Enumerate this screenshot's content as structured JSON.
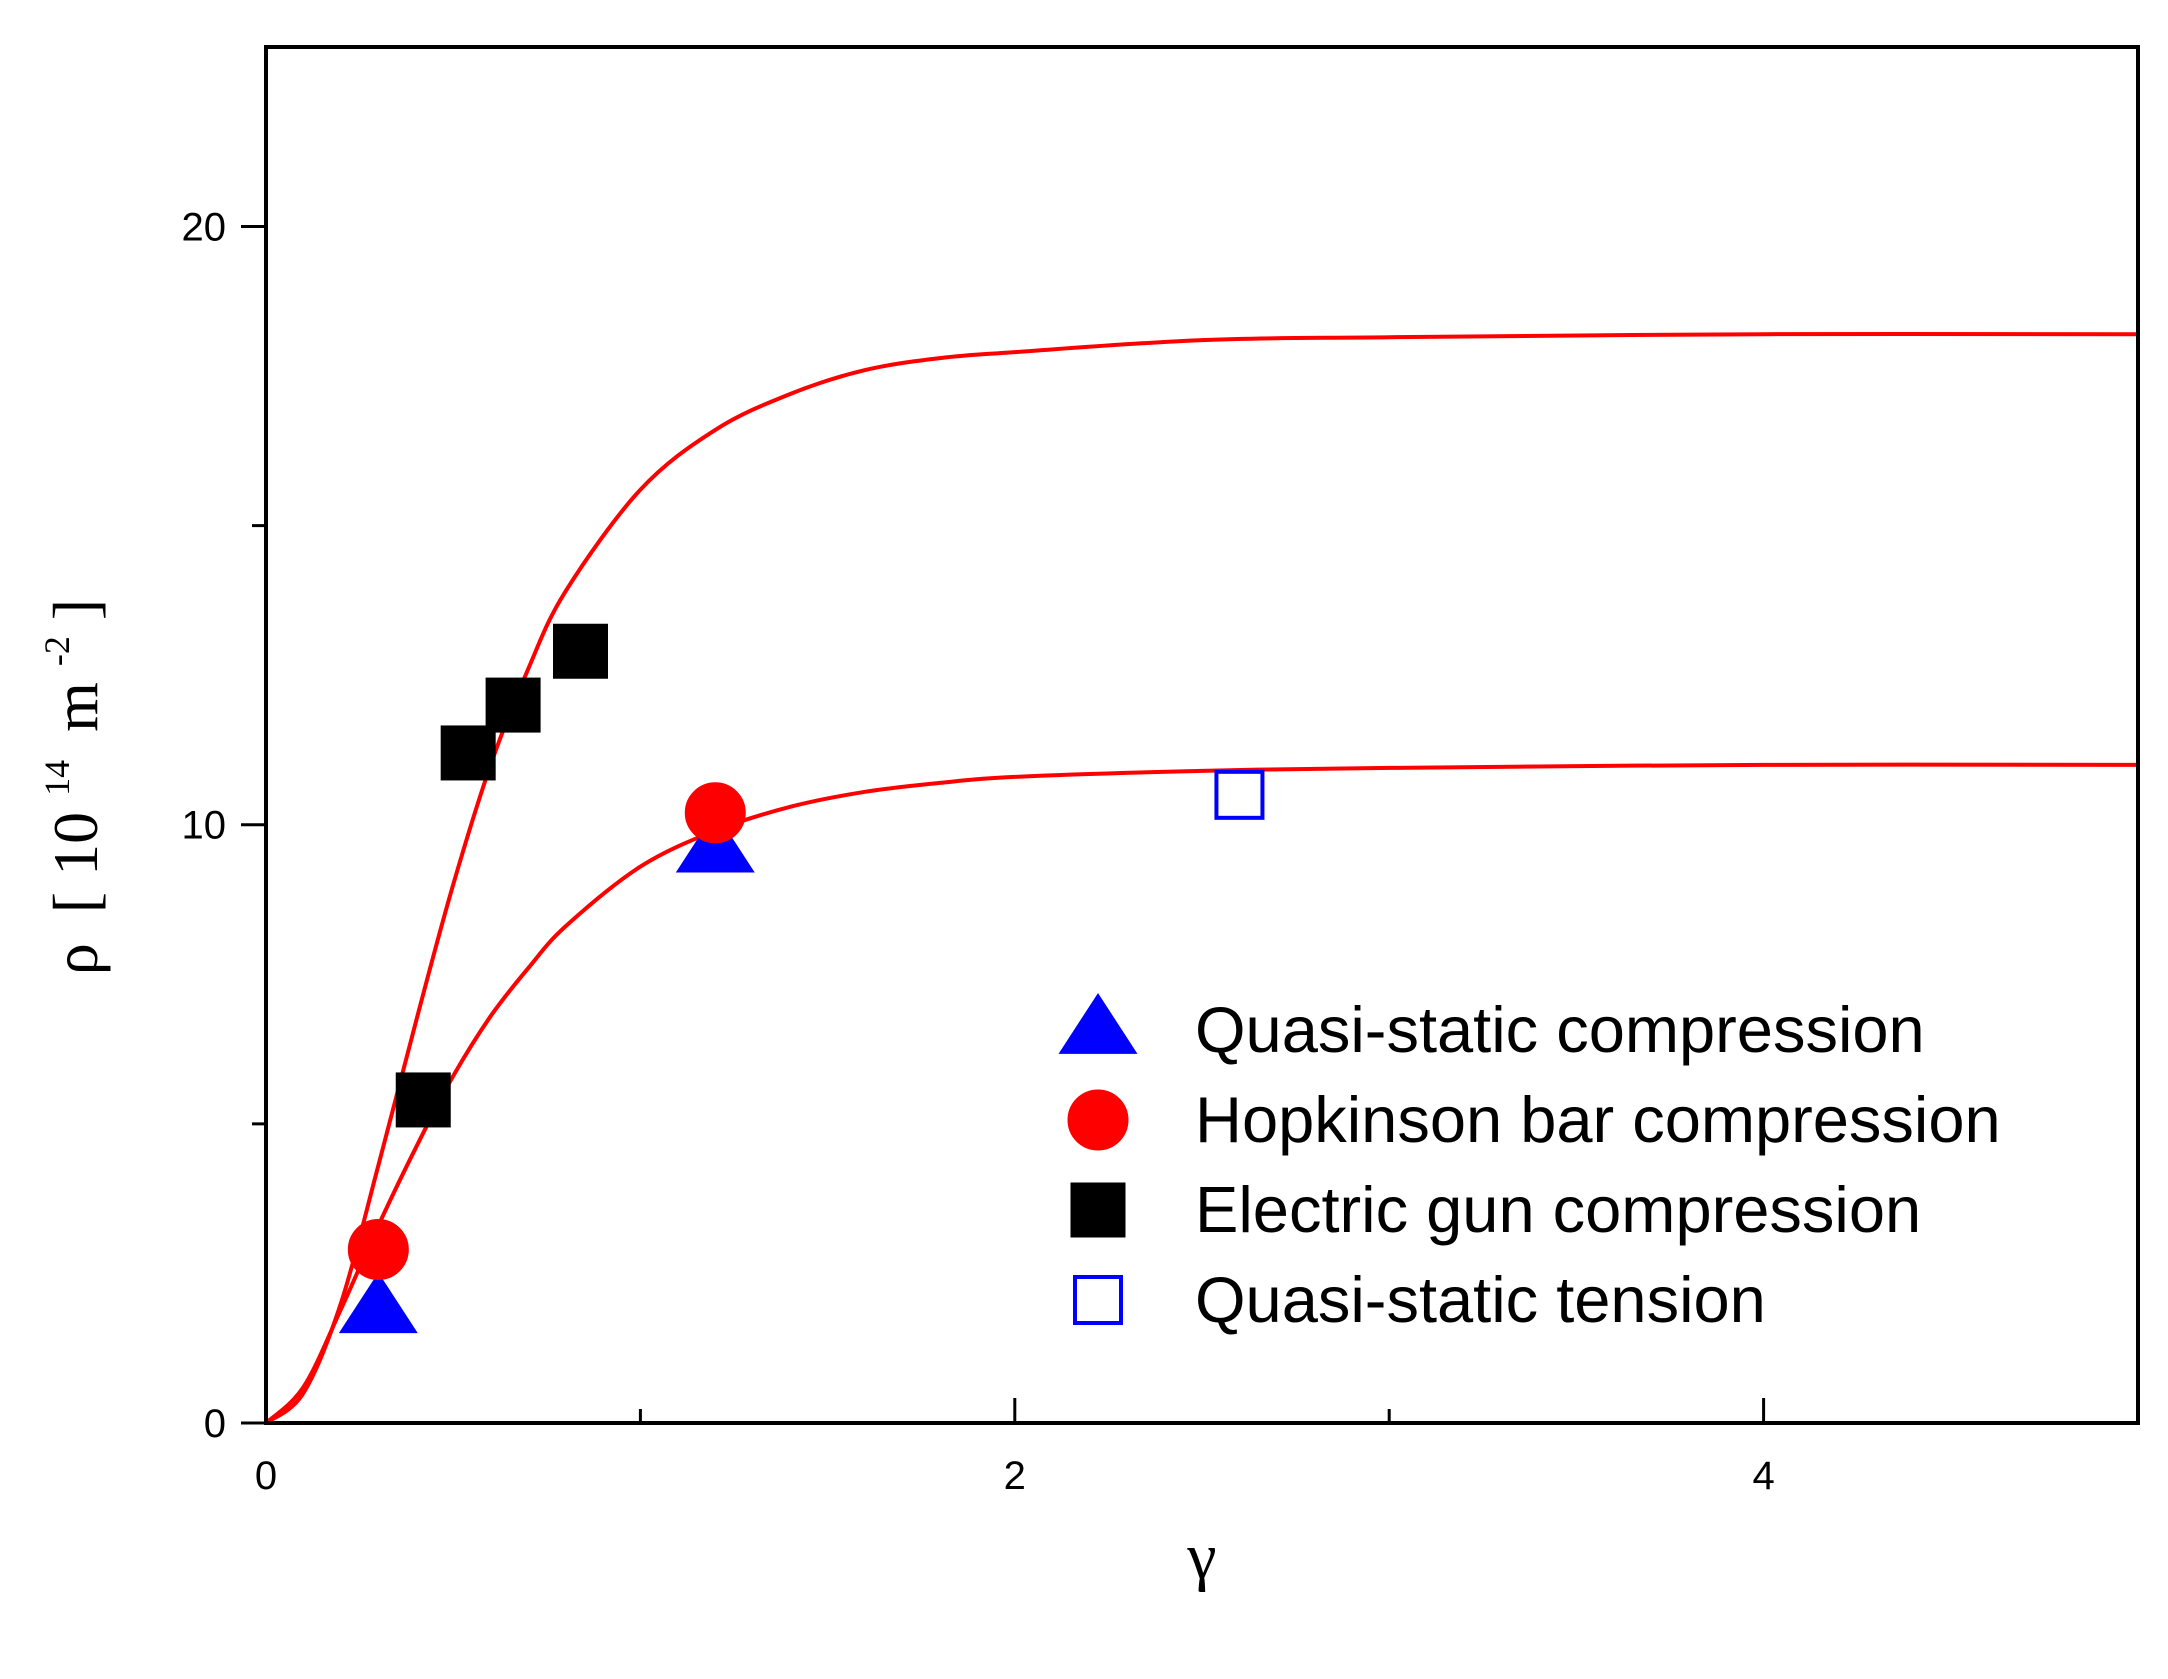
{
  "chart_data": {
    "type": "scatter",
    "title": "",
    "xlabel": "γ",
    "ylabel": {
      "symbol": "ρ",
      "open_bracket": "[",
      "base": "10",
      "exponent": "14",
      "unit": "m",
      "unit_exponent": "-2",
      "close_bracket": "]"
    },
    "xlim": [
      0,
      5
    ],
    "ylim": [
      0,
      23
    ],
    "x_ticks": [
      0,
      2,
      4
    ],
    "x_minor_ticks": [
      1,
      3
    ],
    "y_ticks": [
      0,
      10,
      20
    ],
    "y_minor_ticks": [
      5,
      15
    ],
    "grid": false,
    "legend_position": "bottom-right",
    "series": [
      {
        "name": "Quasi-static compression",
        "marker": "triangle",
        "filled": true,
        "color": "#0000ff",
        "points": [
          [
            0.3,
            1.9
          ],
          [
            1.2,
            9.6
          ]
        ]
      },
      {
        "name": "Hopkinson bar compression",
        "marker": "circle",
        "filled": true,
        "color": "#ff0000",
        "points": [
          [
            0.3,
            2.9
          ],
          [
            1.2,
            10.2
          ]
        ]
      },
      {
        "name": "Electric gun compression",
        "marker": "square",
        "filled": true,
        "color": "#000000",
        "points": [
          [
            0.42,
            5.4
          ],
          [
            0.54,
            11.2
          ],
          [
            0.66,
            12.0
          ],
          [
            0.84,
            12.9
          ]
        ]
      },
      {
        "name": "Quasi-static tension",
        "marker": "square",
        "filled": false,
        "color": "#0000ff",
        "points": [
          [
            2.6,
            10.5
          ]
        ]
      }
    ],
    "fit_curves": [
      {
        "color": "#ff0000",
        "points": [
          [
            0,
            0
          ],
          [
            0.1,
            0.5
          ],
          [
            0.2,
            2.0
          ],
          [
            0.3,
            4.3
          ],
          [
            0.4,
            6.7
          ],
          [
            0.5,
            9.0
          ],
          [
            0.6,
            11.0
          ],
          [
            0.7,
            12.6
          ],
          [
            0.8,
            13.9
          ],
          [
            1.0,
            15.6
          ],
          [
            1.2,
            16.6
          ],
          [
            1.4,
            17.2
          ],
          [
            1.6,
            17.6
          ],
          [
            1.8,
            17.8
          ],
          [
            2.0,
            17.9
          ],
          [
            2.5,
            18.1
          ],
          [
            3.0,
            18.15
          ],
          [
            4.0,
            18.2
          ],
          [
            5.0,
            18.2
          ]
        ]
      },
      {
        "color": "#ff0000",
        "points": [
          [
            0,
            0
          ],
          [
            0.1,
            0.6
          ],
          [
            0.2,
            1.9
          ],
          [
            0.3,
            3.3
          ],
          [
            0.4,
            4.6
          ],
          [
            0.5,
            5.8
          ],
          [
            0.6,
            6.8
          ],
          [
            0.7,
            7.6
          ],
          [
            0.8,
            8.3
          ],
          [
            1.0,
            9.3
          ],
          [
            1.2,
            9.9
          ],
          [
            1.4,
            10.3
          ],
          [
            1.6,
            10.55
          ],
          [
            1.8,
            10.7
          ],
          [
            2.0,
            10.8
          ],
          [
            2.5,
            10.9
          ],
          [
            3.0,
            10.95
          ],
          [
            4.0,
            11.0
          ],
          [
            5.0,
            11.0
          ]
        ]
      }
    ]
  }
}
